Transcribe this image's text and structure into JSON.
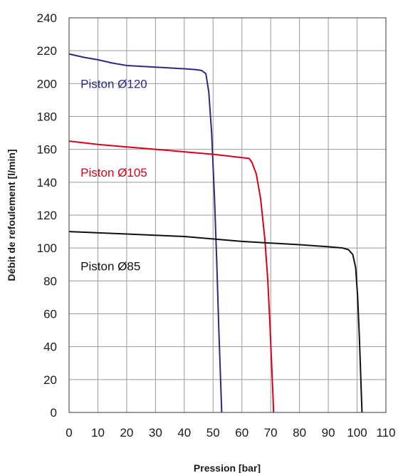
{
  "chart_data": {
    "type": "line",
    "title": "",
    "xlabel": "Pression [bar]",
    "ylabel": "Débit de refoulement [l/min]",
    "xlim": [
      0,
      110
    ],
    "ylim": [
      0,
      240
    ],
    "xticks": [
      0,
      10,
      20,
      30,
      40,
      50,
      60,
      70,
      80,
      90,
      100,
      110
    ],
    "yticks": [
      0,
      20,
      40,
      60,
      80,
      100,
      120,
      140,
      160,
      180,
      200,
      220,
      240
    ],
    "grid": true,
    "legend": "inline labels",
    "series": [
      {
        "name": "Piston Ø120",
        "color": "#2b2a7e",
        "label_at": [
          4,
          200
        ],
        "points": [
          [
            0,
            218
          ],
          [
            5,
            216
          ],
          [
            10,
            214.5
          ],
          [
            15,
            212.5
          ],
          [
            20,
            211
          ],
          [
            25,
            210.5
          ],
          [
            30,
            210
          ],
          [
            35,
            209.5
          ],
          [
            40,
            209
          ],
          [
            44,
            208.5
          ],
          [
            46,
            208
          ],
          [
            47.5,
            206
          ],
          [
            48.5,
            195
          ],
          [
            49.5,
            170
          ],
          [
            50.5,
            130
          ],
          [
            51.3,
            90
          ],
          [
            52,
            50
          ],
          [
            52.6,
            20
          ],
          [
            53,
            0
          ]
        ]
      },
      {
        "name": "Piston Ø105",
        "color": "#d9001b",
        "label_at": [
          4,
          146
        ],
        "points": [
          [
            0,
            165
          ],
          [
            10,
            163
          ],
          [
            20,
            161.5
          ],
          [
            30,
            160
          ],
          [
            40,
            158.5
          ],
          [
            50,
            157
          ],
          [
            55,
            156
          ],
          [
            60,
            155
          ],
          [
            62.5,
            154.5
          ],
          [
            63.5,
            152
          ],
          [
            65,
            145
          ],
          [
            66.5,
            130
          ],
          [
            68,
            105
          ],
          [
            69,
            80
          ],
          [
            69.7,
            55
          ],
          [
            70.3,
            30
          ],
          [
            70.8,
            10
          ],
          [
            71,
            0
          ]
        ]
      },
      {
        "name": "Piston Ø85",
        "color": "#111111",
        "label_at": [
          4,
          89
        ],
        "points": [
          [
            0,
            110
          ],
          [
            20,
            108.5
          ],
          [
            40,
            107
          ],
          [
            60,
            104
          ],
          [
            80,
            102
          ],
          [
            90,
            100.8
          ],
          [
            95,
            100
          ],
          [
            97,
            99
          ],
          [
            98.5,
            96
          ],
          [
            99.5,
            88
          ],
          [
            100.2,
            70
          ],
          [
            100.8,
            45
          ],
          [
            101.3,
            20
          ],
          [
            101.7,
            0
          ]
        ]
      }
    ]
  }
}
